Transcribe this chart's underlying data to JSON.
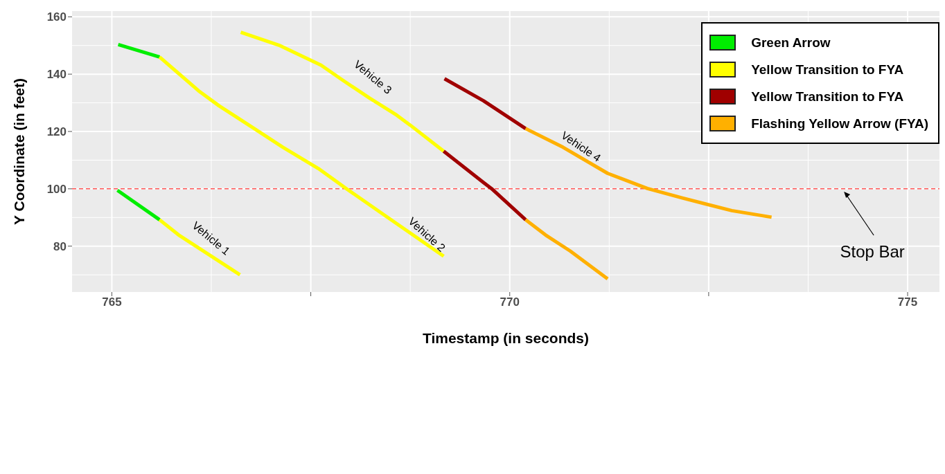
{
  "chart_data": {
    "type": "line",
    "xlabel": "Timestamp (in seconds)",
    "ylabel": "Y Coordinate (in feet)",
    "xlim": [
      764.5,
      775.4
    ],
    "xticks": [
      765,
      {
        "value": 767.5,
        "label": null
      },
      770,
      {
        "value": 772.5,
        "label": null
      },
      775
    ],
    "ylim": [
      64,
      162
    ],
    "yticks": [
      80,
      100,
      120,
      140,
      160
    ],
    "grid": true,
    "legend": "top right",
    "series": [
      {
        "name": "Green Arrow",
        "color": "#00ee00",
        "x": [
          765.07,
          765.6,
          null,
          765.08,
          765.6
        ],
        "values": [
          99.5,
          89.2,
          null,
          150.3,
          146.0
        ]
      },
      {
        "name": "Yellow Transition to FYA",
        "color": "#ffff00",
        "x": [
          765.6,
          765.84,
          766.61,
          null,
          765.6,
          766.09,
          766.35,
          766.74,
          767.15,
          767.61,
          767.96,
          768.42,
          769.17,
          null,
          766.62,
          767.1,
          767.63,
          767.89,
          768.24,
          768.58,
          768.75,
          769.17
        ],
        "values": [
          89.2,
          83.9,
          70.0,
          null,
          146.0,
          134.2,
          128.9,
          121.9,
          114.5,
          106.8,
          99.8,
          90.9,
          76.5,
          null,
          154.6,
          150.1,
          143.1,
          138.1,
          131.6,
          125.7,
          122.2,
          113.1
        ]
      },
      {
        "name": "Yellow Transition to FYA",
        "color": "#a00000",
        "x": [
          769.17,
          769.67,
          769.77,
          770.2,
          null,
          769.18,
          769.67,
          770.2
        ],
        "values": [
          113.1,
          102.2,
          100.1,
          89.2,
          null,
          138.4,
          130.7,
          121.0
        ]
      },
      {
        "name": "Flashing Yellow Arrow (FYA)",
        "color": "#ffb000",
        "x": [
          770.2,
          770.45,
          770.76,
          771.23,
          null,
          770.2,
          770.67,
          771.23,
          771.73,
          772.17,
          772.79,
          773.29
        ],
        "values": [
          89.2,
          83.9,
          78.3,
          68.6,
          null,
          121.0,
          114.5,
          105.4,
          100.1,
          96.8,
          92.4,
          90.1
        ]
      }
    ],
    "ref_lines": [
      {
        "axis": "y",
        "value": 100,
        "color": "#ff0000",
        "line_style": "dashed"
      }
    ],
    "annotations": [
      {
        "text": "Vehicle 1",
        "x": 765.84,
        "y": 83.9
      },
      {
        "text": "Vehicle 2",
        "x": 768.42,
        "y": 90.9
      },
      {
        "text": "Vehicle 3",
        "x": 768.24,
        "y": 131.6
      },
      {
        "text": "Vehicle 4",
        "x": 770.67,
        "y": 114.5
      },
      {
        "text": "Stop Bar",
        "x": 774.2,
        "y": 99
      }
    ]
  }
}
